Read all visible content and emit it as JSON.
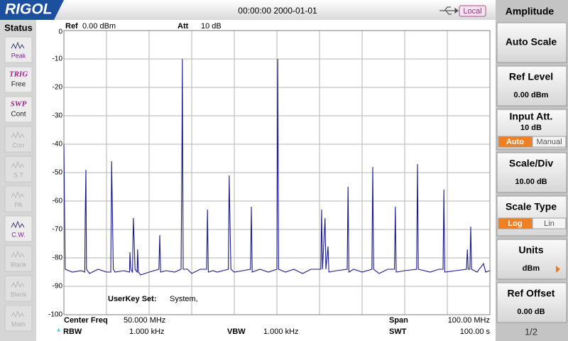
{
  "header": {
    "brand": "RIGOL",
    "datetime": "00:00:00 2000-01-01",
    "mode": "Local"
  },
  "status": {
    "title": "Status",
    "items": [
      {
        "label": "Peak",
        "enabled": true
      },
      {
        "tag": "TRIG",
        "label": "Free",
        "enabled": true
      },
      {
        "tag": "SWP",
        "label": "Cont",
        "enabled": true
      },
      {
        "label": "Corr",
        "enabled": false
      },
      {
        "label": "S.T",
        "enabled": false
      },
      {
        "label": "PA",
        "enabled": false
      },
      {
        "label": "C.W.",
        "enabled": true
      },
      {
        "label": "Blank",
        "enabled": false
      },
      {
        "label": "Blank",
        "enabled": false
      },
      {
        "label": "Math",
        "enabled": false
      }
    ]
  },
  "chart_data": {
    "type": "line",
    "ref_label": "Ref",
    "ref_value": "0.00 dBm",
    "att_label": "Att",
    "att_value": "10 dB",
    "annotation_label": "UserKey Set:",
    "annotation_value": "System,",
    "settings": {
      "center_label": "Center Freq",
      "center_value": "50.000 MHz",
      "span_label": "Span",
      "span_value": "100.00 MHz",
      "rbw_marker": "*",
      "rbw_label": "RBW",
      "rbw_value": "1.000 kHz",
      "vbw_label": "VBW",
      "vbw_value": "1.000 kHz",
      "swt_label": "SWT",
      "swt_value": "100.00 s"
    },
    "color": "#1a1a8c",
    "grid": true,
    "xlim": [
      0,
      100
    ],
    "ylim": [
      -100,
      0
    ],
    "yticks": [
      0,
      -10,
      -20,
      -30,
      -40,
      -50,
      -60,
      -70,
      -80,
      -90,
      -100
    ],
    "x": [
      0,
      0.3,
      2,
      4,
      4.9,
      5.0,
      5.17,
      5.3,
      6,
      8,
      10,
      11.0,
      11.2,
      11.4,
      11.6,
      12,
      14,
      15.4,
      15.5,
      15.7,
      16.1,
      16.3,
      16.5,
      16.7,
      17.2,
      17.3,
      17.5,
      18,
      20,
      22.3,
      22.5,
      22.7,
      24,
      26,
      27.5,
      27.7,
      27.8,
      28.0,
      29,
      30,
      32,
      33.5,
      33.7,
      33.9,
      35,
      36,
      38.6,
      38.8,
      39.0,
      39.2,
      40,
      42,
      43.8,
      44.0,
      44.2,
      46,
      48,
      50.0,
      50.1,
      50.2,
      50.4,
      52,
      54,
      56,
      58,
      60.3,
      60.5,
      60.7,
      61.3,
      61.5,
      62.0,
      62.2,
      64,
      66.5,
      66.7,
      66.9,
      68,
      70,
      72.3,
      72.5,
      72.7,
      74,
      76,
      77.6,
      77.8,
      78.0,
      80,
      82.8,
      83.0,
      83.2,
      86,
      88,
      89.0,
      89.2,
      89.4,
      92,
      94.5,
      94.7,
      94.9,
      95.3,
      95.5,
      95.7,
      97,
      98.5,
      99,
      100
    ],
    "values": [
      -40,
      -84,
      -85,
      -84.5,
      -85,
      -66,
      -49,
      -84,
      -85.5,
      -84,
      -85,
      -85,
      -46,
      -65,
      -84,
      -85,
      -84.5,
      -85,
      -78,
      -84,
      -85,
      -66,
      -74,
      -84,
      -85,
      -77,
      -85,
      -86,
      -85,
      -84,
      -72,
      -85,
      -84.5,
      -85,
      -84,
      -45,
      -10,
      -84,
      -84,
      -85.5,
      -84,
      -84,
      -63,
      -85,
      -84.5,
      -85,
      -84,
      -51,
      -68,
      -84,
      -85,
      -84.5,
      -84,
      -62,
      -85,
      -84,
      -85,
      -84,
      -45,
      -10,
      -84,
      -85,
      -84,
      -85.5,
      -84,
      -84,
      -63,
      -84,
      -66,
      -84,
      -76,
      -85,
      -84.5,
      -84,
      -55,
      -85,
      -84,
      -85,
      -84,
      -48,
      -84,
      -85.5,
      -84,
      -84,
      -62,
      -85,
      -84.5,
      -84,
      -47,
      -84,
      -85,
      -84,
      -84,
      -56,
      -85,
      -84.5,
      -84,
      -77,
      -84,
      -84,
      -69,
      -84,
      -85,
      -82,
      -85,
      -84.5
    ]
  },
  "menu": {
    "title": "Amplitude",
    "buttons": [
      {
        "label": "Auto Scale"
      },
      {
        "label": "Ref Level",
        "value": "0.00 dBm"
      },
      {
        "label": "Input Att.",
        "value": "10 dB",
        "options": [
          "Auto",
          "Manual"
        ],
        "selected": 0
      },
      {
        "label": "Scale/Div",
        "value": "10.00 dB"
      },
      {
        "label": "Scale Type",
        "options": [
          "Log",
          "Lin"
        ],
        "selected": 0
      },
      {
        "label": "Units",
        "value": "dBm"
      },
      {
        "label": "Ref Offset",
        "value": "0.00 dB"
      }
    ],
    "page": "1/2"
  }
}
